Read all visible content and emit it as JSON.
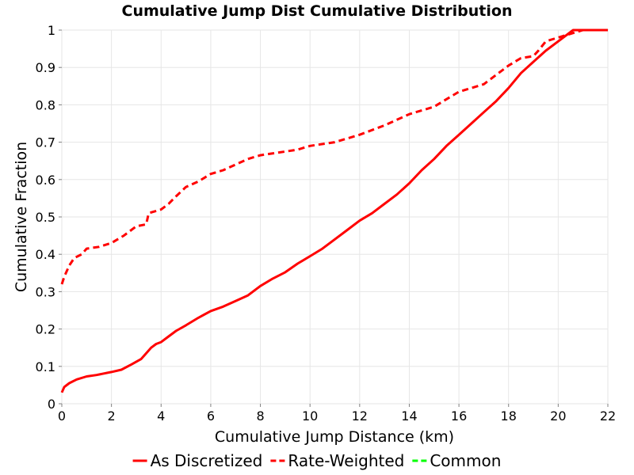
{
  "chart_data": {
    "type": "line",
    "title": "Cumulative Jump Dist Cumulative Distribution",
    "xlabel": "Cumulative Jump Distance (km)",
    "ylabel": "Cumulative Fraction",
    "xlim": [
      0,
      22
    ],
    "ylim": [
      0,
      1
    ],
    "x_ticks": [
      "0",
      "2",
      "4",
      "6",
      "8",
      "10",
      "12",
      "14",
      "16",
      "18",
      "20",
      "22"
    ],
    "y_ticks": [
      "0",
      "0.1",
      "0.2",
      "0.3",
      "0.4",
      "0.5",
      "0.6",
      "0.7",
      "0.8",
      "0.9",
      "1"
    ],
    "grid": true,
    "legend_position": "bottom",
    "series": [
      {
        "name": "As Discretized",
        "color": "#ff0000",
        "style": "solid",
        "x": [
          0,
          0.1,
          0.3,
          0.6,
          1.0,
          1.4,
          2.0,
          2.4,
          2.8,
          3.2,
          3.4,
          3.6,
          3.8,
          4.0,
          4.3,
          4.6,
          5.0,
          5.5,
          6.0,
          6.5,
          7.0,
          7.5,
          8.0,
          8.5,
          9.0,
          9.5,
          10.0,
          10.5,
          11.0,
          11.5,
          12.0,
          12.5,
          13.0,
          13.5,
          14.0,
          14.5,
          15.0,
          15.5,
          16.0,
          16.5,
          17.0,
          17.5,
          18.0,
          18.5,
          19.0,
          19.5,
          20.0,
          20.6,
          21.0,
          22.0
        ],
        "y": [
          0.03,
          0.045,
          0.055,
          0.065,
          0.073,
          0.077,
          0.085,
          0.091,
          0.105,
          0.12,
          0.135,
          0.15,
          0.16,
          0.165,
          0.18,
          0.195,
          0.21,
          0.23,
          0.248,
          0.26,
          0.275,
          0.29,
          0.315,
          0.335,
          0.352,
          0.375,
          0.395,
          0.415,
          0.44,
          0.465,
          0.49,
          0.51,
          0.535,
          0.56,
          0.59,
          0.625,
          0.655,
          0.69,
          0.72,
          0.75,
          0.78,
          0.81,
          0.845,
          0.885,
          0.915,
          0.945,
          0.97,
          1.0,
          1.0,
          1.0
        ]
      },
      {
        "name": "Rate-Weighted",
        "color": "#ff0000",
        "style": "dashed",
        "x": [
          0,
          0.1,
          0.3,
          0.5,
          0.8,
          1.0,
          1.5,
          2.0,
          2.5,
          3.0,
          3.4,
          3.5,
          4.0,
          4.3,
          4.6,
          5.0,
          5.5,
          6.0,
          6.5,
          7.0,
          7.5,
          8.0,
          9.0,
          9.5,
          10.0,
          11.0,
          12.0,
          13.0,
          13.5,
          14.0,
          15.0,
          15.5,
          16.0,
          16.5,
          17.0,
          17.5,
          18.0,
          18.5,
          19.0,
          19.2,
          19.5,
          20.0,
          20.5,
          21.0,
          22.0
        ],
        "y": [
          0.32,
          0.34,
          0.37,
          0.39,
          0.4,
          0.415,
          0.42,
          0.43,
          0.45,
          0.475,
          0.48,
          0.51,
          0.52,
          0.535,
          0.555,
          0.58,
          0.595,
          0.615,
          0.625,
          0.64,
          0.655,
          0.665,
          0.675,
          0.68,
          0.69,
          0.7,
          0.72,
          0.745,
          0.76,
          0.775,
          0.795,
          0.815,
          0.835,
          0.845,
          0.855,
          0.88,
          0.905,
          0.925,
          0.93,
          0.945,
          0.97,
          0.98,
          0.99,
          1.0,
          1.0
        ]
      },
      {
        "name": "Common",
        "color": "#00ff00",
        "style": "dashed",
        "x": [],
        "y": []
      }
    ]
  }
}
